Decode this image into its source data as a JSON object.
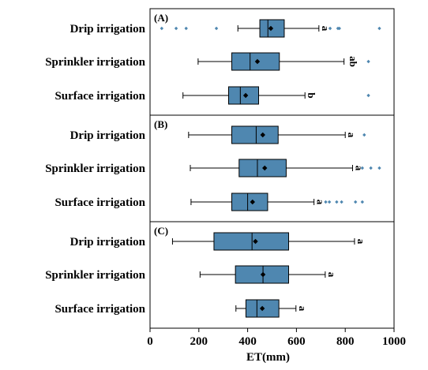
{
  "chart_data": {
    "type": "boxplot",
    "orientation": "horizontal",
    "xlabel": "ET(mm)",
    "xlim": [
      0,
      1000
    ],
    "xticks": [
      0,
      200,
      400,
      600,
      800,
      1000
    ],
    "categories": [
      "Drip irrigation",
      "Sprinkler irrigation",
      "Surface irrigation"
    ],
    "box_color": "#4f87b0",
    "outlier_color": "#4f87b0",
    "grid": false,
    "panels": [
      {
        "label": "(A)",
        "boxes": [
          {
            "category": "Drip irrigation",
            "whisker_low": 360,
            "q1": 450,
            "median": 483,
            "q3": 550,
            "whisker_high": 692,
            "mean": 495,
            "letter": "a",
            "outliers": [
              48,
              107,
              148,
              272,
              738,
              770,
              776,
              940
            ]
          },
          {
            "category": "Sprinkler irrigation",
            "whisker_low": 197,
            "q1": 335,
            "median": 410,
            "q3": 530,
            "whisker_high": 795,
            "mean": 440,
            "letter": "ab",
            "outliers": [
              895
            ]
          },
          {
            "category": "Surface irrigation",
            "whisker_low": 135,
            "q1": 322,
            "median": 370,
            "q3": 445,
            "whisker_high": 635,
            "mean": 392,
            "letter": "b",
            "outliers": [
              895
            ]
          }
        ]
      },
      {
        "label": "(B)",
        "boxes": [
          {
            "category": "Drip irrigation",
            "whisker_low": 158,
            "q1": 335,
            "median": 435,
            "q3": 525,
            "whisker_high": 800,
            "mean": 462,
            "letter": "a",
            "outliers": [
              878
            ]
          },
          {
            "category": "Sprinkler irrigation",
            "whisker_low": 165,
            "q1": 365,
            "median": 440,
            "q3": 558,
            "whisker_high": 830,
            "mean": 470,
            "letter": "a",
            "outliers": [
              870,
              905,
              940
            ]
          },
          {
            "category": "Surface irrigation",
            "whisker_low": 168,
            "q1": 335,
            "median": 400,
            "q3": 482,
            "whisker_high": 672,
            "mean": 420,
            "letter": "a",
            "outliers": [
              720,
              735,
              765,
              785,
              842,
              870
            ]
          }
        ]
      },
      {
        "label": "(C)",
        "boxes": [
          {
            "category": "Drip irrigation",
            "whisker_low": 92,
            "q1": 262,
            "median": 418,
            "q3": 568,
            "whisker_high": 838,
            "mean": 432,
            "letter": "a",
            "outliers": []
          },
          {
            "category": "Sprinkler irrigation",
            "whisker_low": 205,
            "q1": 350,
            "median": 463,
            "q3": 568,
            "whisker_high": 718,
            "mean": 463,
            "letter": "a",
            "outliers": []
          },
          {
            "category": "Surface irrigation",
            "whisker_low": 352,
            "q1": 393,
            "median": 438,
            "q3": 528,
            "whisker_high": 598,
            "mean": 460,
            "letter": "a",
            "outliers": []
          }
        ]
      }
    ]
  }
}
